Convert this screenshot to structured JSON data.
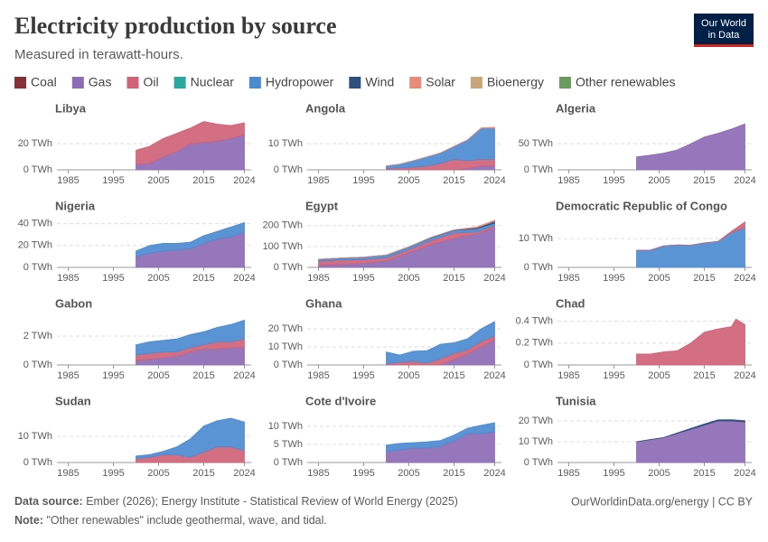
{
  "title": "Electricity production by source",
  "subtitle": "Measured in terawatt-hours.",
  "logo": [
    "Our World",
    "in Data"
  ],
  "legend": [
    {
      "name": "Coal",
      "color": "#883039"
    },
    {
      "name": "Gas",
      "color": "#8e6bb5"
    },
    {
      "name": "Oil",
      "color": "#cf6278"
    },
    {
      "name": "Nuclear",
      "color": "#2aa8a0"
    },
    {
      "name": "Hydropower",
      "color": "#4c8bd0"
    },
    {
      "name": "Wind",
      "color": "#2d4f7c"
    },
    {
      "name": "Solar",
      "color": "#ea8a78"
    },
    {
      "name": "Bioenergy",
      "color": "#c9a57a"
    },
    {
      "name": "Other renewables",
      "color": "#6b9a5e"
    }
  ],
  "footer": {
    "source_label": "Data source:",
    "source": "Ember (2026); Energy Institute - Statistical Review of World Energy (2025)",
    "note_label": "Note:",
    "note": "\"Other renewables\" include geothermal, wave, and tidal.",
    "credit": "OurWorldinData.org/energy | CC BY"
  },
  "chart_data": [
    {
      "type": "area",
      "title": "Libya",
      "xlim": [
        1982.5,
        2025.5
      ],
      "xticks": [
        1985,
        1995,
        2005,
        2015,
        2024
      ],
      "ylim": [
        0,
        36
      ],
      "yticks": [
        {
          "value": 0,
          "label": "0 TWh"
        },
        {
          "value": 20,
          "label": "20 TWh"
        }
      ],
      "x": [
        2000,
        2003,
        2006,
        2009,
        2012,
        2015,
        2018,
        2021,
        2024
      ],
      "series": [
        {
          "name": "Gas",
          "color": "#8e6bb5",
          "values": [
            4,
            5,
            10,
            14,
            20,
            21,
            22,
            24,
            27
          ]
        },
        {
          "name": "Oil",
          "color": "#cf6278",
          "values": [
            11,
            13,
            14,
            14,
            12,
            16,
            13,
            10,
            9
          ]
        }
      ]
    },
    {
      "type": "area",
      "title": "Angola",
      "xlim": [
        1982.5,
        2025.5
      ],
      "xticks": [
        1985,
        1995,
        2005,
        2015,
        2024
      ],
      "ylim": [
        0,
        18
      ],
      "yticks": [
        {
          "value": 0,
          "label": "0 TWh"
        },
        {
          "value": 10,
          "label": "10 TWh"
        }
      ],
      "x": [
        2000,
        2003,
        2006,
        2009,
        2012,
        2015,
        2018,
        2021,
        2024
      ],
      "series": [
        {
          "name": "Gas",
          "color": "#8e6bb5",
          "values": [
            0,
            0,
            0,
            0,
            0,
            0,
            0.5,
            1.5,
            1.5
          ]
        },
        {
          "name": "Oil",
          "color": "#cf6278",
          "values": [
            0.5,
            0.7,
            1,
            1.5,
            2.5,
            4,
            3,
            2.5,
            2.5
          ]
        },
        {
          "name": "Hydropower",
          "color": "#4c8bd0",
          "values": [
            1,
            1.5,
            2.5,
            3.5,
            4,
            5,
            8,
            12,
            12
          ]
        },
        {
          "name": "Solar",
          "color": "#ea8a78",
          "values": [
            0,
            0,
            0,
            0,
            0,
            0,
            0,
            0.1,
            0.3
          ]
        }
      ]
    },
    {
      "type": "area",
      "title": "Algeria",
      "xlim": [
        1982.5,
        2025.5
      ],
      "xticks": [
        1985,
        1995,
        2005,
        2015,
        2024
      ],
      "ylim": [
        0,
        90
      ],
      "yticks": [
        {
          "value": 0,
          "label": "0 TWh"
        },
        {
          "value": 50,
          "label": "50 TWh"
        }
      ],
      "x": [
        2000,
        2003,
        2006,
        2009,
        2012,
        2015,
        2018,
        2021,
        2024
      ],
      "series": [
        {
          "name": "Gas",
          "color": "#8e6bb5",
          "values": [
            25,
            28,
            32,
            38,
            50,
            63,
            70,
            78,
            88
          ]
        }
      ]
    },
    {
      "type": "area",
      "title": "Nigeria",
      "xlim": [
        1982.5,
        2025.5
      ],
      "xticks": [
        1985,
        1995,
        2005,
        2015,
        2024
      ],
      "ylim": [
        0,
        43
      ],
      "yticks": [
        {
          "value": 0,
          "label": "0 TWh"
        },
        {
          "value": 20,
          "label": "20 TWh"
        },
        {
          "value": 40,
          "label": "40 TWh"
        }
      ],
      "x": [
        2000,
        2003,
        2006,
        2009,
        2012,
        2015,
        2018,
        2021,
        2024
      ],
      "series": [
        {
          "name": "Gas",
          "color": "#8e6bb5",
          "values": [
            10,
            13,
            15,
            16,
            17,
            22,
            26,
            28,
            32
          ]
        },
        {
          "name": "Hydropower",
          "color": "#4c8bd0",
          "values": [
            5,
            7,
            7,
            6,
            6,
            7,
            7,
            9,
            9
          ]
        }
      ]
    },
    {
      "type": "area",
      "title": "Egypt",
      "xlim": [
        1982.5,
        2025.5
      ],
      "xticks": [
        1985,
        1995,
        2005,
        2015,
        2024
      ],
      "ylim": [
        0,
        225
      ],
      "yticks": [
        {
          "value": 0,
          "label": "0 TWh"
        },
        {
          "value": 100,
          "label": "100 TWh"
        },
        {
          "value": 200,
          "label": "200 TWh"
        }
      ],
      "x": [
        1985,
        1990,
        1995,
        2000,
        2005,
        2010,
        2015,
        2020,
        2024
      ],
      "series": [
        {
          "name": "Gas",
          "color": "#8e6bb5",
          "values": [
            10,
            15,
            20,
            30,
            70,
            110,
            140,
            160,
            190
          ]
        },
        {
          "name": "Oil",
          "color": "#cf6278",
          "values": [
            20,
            20,
            18,
            15,
            15,
            20,
            25,
            10,
            10
          ]
        },
        {
          "name": "Hydropower",
          "color": "#4c8bd0",
          "values": [
            9,
            10,
            11,
            14,
            13,
            13,
            13,
            15,
            13
          ]
        },
        {
          "name": "Wind",
          "color": "#2d4f7c",
          "values": [
            0,
            0,
            0,
            0,
            0.5,
            1.5,
            1.5,
            5,
            8
          ]
        },
        {
          "name": "Solar",
          "color": "#ea8a78",
          "values": [
            0,
            0,
            0,
            0,
            0,
            0,
            0,
            4,
            5
          ]
        }
      ]
    },
    {
      "type": "area",
      "title": "Democratic Republic of Congo",
      "xlim": [
        1982.5,
        2025.5
      ],
      "xticks": [
        1985,
        1995,
        2005,
        2015,
        2024
      ],
      "ylim": [
        0,
        16.3
      ],
      "yticks": [
        {
          "value": 0,
          "label": "0 TWh"
        },
        {
          "value": 10,
          "label": "10 TWh"
        }
      ],
      "x": [
        2000,
        2003,
        2006,
        2009,
        2012,
        2015,
        2018,
        2021,
        2024
      ],
      "series": [
        {
          "name": "Hydropower",
          "color": "#4c8bd0",
          "values": [
            6,
            6,
            7.5,
            7.8,
            7.7,
            8.5,
            9,
            12,
            13.8
          ]
        },
        {
          "name": "Oil",
          "color": "#cf6278",
          "values": [
            0,
            0,
            0,
            0,
            0,
            0,
            0,
            0.5,
            2
          ]
        }
      ]
    },
    {
      "type": "area",
      "title": "Gabon",
      "xlim": [
        1982.5,
        2025.5
      ],
      "xticks": [
        1985,
        1995,
        2005,
        2015,
        2024
      ],
      "ylim": [
        0,
        3.25
      ],
      "yticks": [
        {
          "value": 0,
          "label": "0 TWh"
        },
        {
          "value": 2,
          "label": "2 TWh"
        }
      ],
      "x": [
        2000,
        2003,
        2006,
        2009,
        2012,
        2015,
        2018,
        2021,
        2024
      ],
      "series": [
        {
          "name": "Gas",
          "color": "#8e6bb5",
          "values": [
            0.3,
            0.4,
            0.5,
            0.6,
            0.9,
            1.1,
            1.1,
            1.2,
            1.2
          ]
        },
        {
          "name": "Oil",
          "color": "#cf6278",
          "values": [
            0.4,
            0.4,
            0.4,
            0.3,
            0.3,
            0.3,
            0.5,
            0.4,
            0.6
          ]
        },
        {
          "name": "Hydropower",
          "color": "#4c8bd0",
          "values": [
            0.7,
            0.8,
            0.8,
            0.9,
            0.9,
            0.9,
            1,
            1.2,
            1.3
          ]
        }
      ]
    },
    {
      "type": "area",
      "title": "Ghana",
      "xlim": [
        1982.5,
        2025.5
      ],
      "xticks": [
        1985,
        1995,
        2005,
        2015,
        2024
      ],
      "ylim": [
        0,
        26
      ],
      "yticks": [
        {
          "value": 0,
          "label": "0 TWh"
        },
        {
          "value": 10,
          "label": "10 TWh"
        },
        {
          "value": 20,
          "label": "20 TWh"
        }
      ],
      "x": [
        2000,
        2003,
        2006,
        2009,
        2012,
        2015,
        2018,
        2021,
        2024
      ],
      "series": [
        {
          "name": "Gas",
          "color": "#8e6bb5",
          "values": [
            0,
            0,
            0,
            0,
            0,
            3,
            6,
            10,
            14
          ]
        },
        {
          "name": "Oil",
          "color": "#cf6278",
          "values": [
            0.6,
            1.5,
            2,
            1,
            3.5,
            3.5,
            2.5,
            3,
            2
          ]
        },
        {
          "name": "Hydropower",
          "color": "#4c8bd0",
          "values": [
            6.6,
            4,
            5.6,
            6.9,
            8,
            5.8,
            6,
            7,
            8
          ]
        }
      ]
    },
    {
      "type": "area",
      "title": "Chad",
      "xlim": [
        1982.5,
        2025.5
      ],
      "xticks": [
        1985,
        1995,
        2005,
        2015,
        2024
      ],
      "ylim": [
        0,
        0.43
      ],
      "yticks": [
        {
          "value": 0,
          "label": "0 TWh"
        },
        {
          "value": 0.2,
          "label": "0.2 TWh"
        },
        {
          "value": 0.4,
          "label": "0.4 TWh"
        }
      ],
      "x": [
        2000,
        2003,
        2006,
        2009,
        2012,
        2015,
        2018,
        2021,
        2022,
        2024
      ],
      "series": [
        {
          "name": "Oil",
          "color": "#cf6278",
          "values": [
            0.1,
            0.1,
            0.12,
            0.13,
            0.2,
            0.3,
            0.33,
            0.35,
            0.42,
            0.37
          ]
        }
      ]
    },
    {
      "type": "area",
      "title": "Sudan",
      "xlim": [
        1982.5,
        2025.5
      ],
      "xticks": [
        1985,
        1995,
        2005,
        2015,
        2024
      ],
      "ylim": [
        0,
        18
      ],
      "yticks": [
        {
          "value": 0,
          "label": "0 TWh"
        },
        {
          "value": 10,
          "label": "10 TWh"
        }
      ],
      "x": [
        2000,
        2003,
        2006,
        2009,
        2012,
        2015,
        2018,
        2021,
        2024
      ],
      "series": [
        {
          "name": "Oil",
          "color": "#cf6278",
          "values": [
            1.5,
            2,
            3,
            3,
            2,
            4,
            6,
            6,
            4.5
          ]
        },
        {
          "name": "Hydropower",
          "color": "#4c8bd0",
          "values": [
            1,
            1,
            1.3,
            3,
            7,
            10,
            10,
            11,
            11
          ]
        }
      ]
    },
    {
      "type": "area",
      "title": "Cote d'Ivoire",
      "xlim": [
        1982.5,
        2025.5
      ],
      "xticks": [
        1985,
        1995,
        2005,
        2015,
        2024
      ],
      "ylim": [
        0,
        13
      ],
      "yticks": [
        {
          "value": 0,
          "label": "0 TWh"
        },
        {
          "value": 5,
          "label": "5 TWh"
        },
        {
          "value": 10,
          "label": "10 TWh"
        }
      ],
      "x": [
        2000,
        2003,
        2006,
        2009,
        2012,
        2015,
        2018,
        2021,
        2024
      ],
      "series": [
        {
          "name": "Gas",
          "color": "#8e6bb5",
          "values": [
            3,
            3.5,
            4,
            4,
            4.5,
            6,
            8,
            8,
            8.5
          ]
        },
        {
          "name": "Hydropower",
          "color": "#4c8bd0",
          "values": [
            1.8,
            1.8,
            1.5,
            1.7,
            1.6,
            1.6,
            1.5,
            2.3,
            2.5
          ]
        }
      ]
    },
    {
      "type": "area",
      "title": "Tunisia",
      "xlim": [
        1982.5,
        2025.5
      ],
      "xticks": [
        1985,
        1995,
        2005,
        2015,
        2024
      ],
      "ylim": [
        0,
        22.6
      ],
      "yticks": [
        {
          "value": 0,
          "label": "0 TWh"
        },
        {
          "value": 10,
          "label": "10 TWh"
        },
        {
          "value": 20,
          "label": "20 TWh"
        }
      ],
      "x": [
        2000,
        2003,
        2006,
        2009,
        2012,
        2015,
        2018,
        2021,
        2024
      ],
      "series": [
        {
          "name": "Gas",
          "color": "#8e6bb5",
          "values": [
            10,
            11,
            12,
            14,
            16,
            18,
            20,
            20,
            19.5
          ]
        },
        {
          "name": "Wind",
          "color": "#2d4f7c",
          "values": [
            0,
            0,
            0,
            0.2,
            0.4,
            0.5,
            0.5,
            0.6,
            0.6
          ]
        }
      ]
    }
  ]
}
